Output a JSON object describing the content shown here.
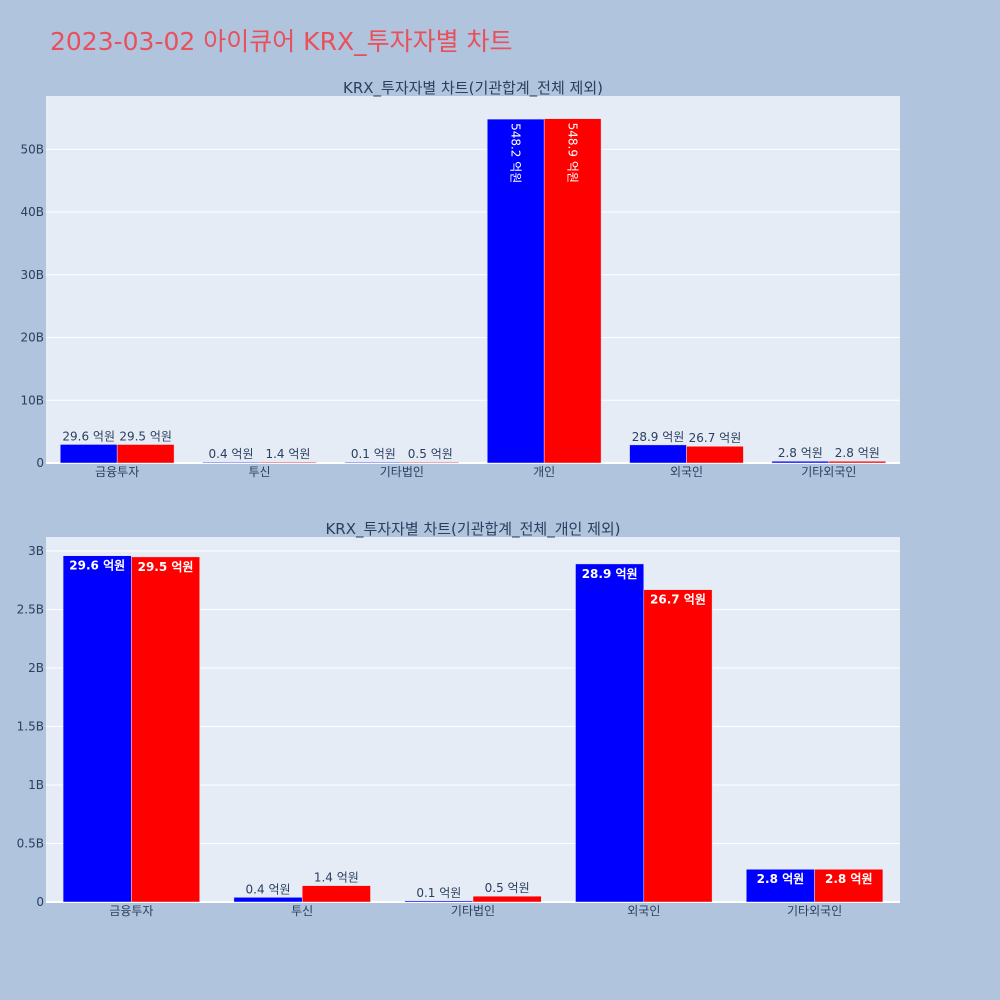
{
  "title": "2023-03-02 아이큐어 KRX_투자자별 차트",
  "colors": {
    "series_a": "#0000ff",
    "series_b": "#ff0000"
  },
  "chart_data": [
    {
      "type": "bar",
      "title": "KRX_투자자별 차트(기관합계_전체 제외)",
      "categories": [
        "금융투자",
        "투신",
        "기타법인",
        "개인",
        "외국인",
        "기타외국인"
      ],
      "series": [
        {
          "values": [
            2960000000,
            40000000,
            10000000,
            54820000000,
            2890000000,
            280000000
          ],
          "labels": [
            "29.6 억원",
            "0.4 억원",
            "0.1 억원",
            "548.2 억원",
            "28.9 억원",
            "2.8 억원"
          ]
        },
        {
          "values": [
            2950000000,
            140000000,
            50000000,
            54890000000,
            2670000000,
            280000000
          ],
          "labels": [
            "29.5 억원",
            "1.4 억원",
            "0.5 억원",
            "548.9 억원",
            "26.7 억원",
            "2.8 억원"
          ]
        }
      ],
      "ylim": [
        0,
        58500000000
      ],
      "yticks": [
        0,
        10000000000,
        20000000000,
        30000000000,
        40000000000,
        50000000000
      ],
      "ytick_labels": [
        "0",
        "10B",
        "20B",
        "30B",
        "40B",
        "50B"
      ]
    },
    {
      "type": "bar",
      "title": "KRX_투자자별 차트(기관합계_전체_개인 제외)",
      "categories": [
        "금융투자",
        "투신",
        "기타법인",
        "외국인",
        "기타외국인"
      ],
      "series": [
        {
          "values": [
            2960000000,
            40000000,
            10000000,
            2890000000,
            280000000
          ],
          "labels": [
            "29.6 억원",
            "0.4 억원",
            "0.1 억원",
            "28.9 억원",
            "2.8 억원"
          ]
        },
        {
          "values": [
            2950000000,
            140000000,
            50000000,
            2670000000,
            280000000
          ],
          "labels": [
            "29.5 억원",
            "1.4 억원",
            "0.5 억원",
            "26.7 억원",
            "2.8 억원"
          ]
        }
      ],
      "ylim": [
        0,
        3120000000
      ],
      "yticks": [
        0,
        500000000,
        1000000000,
        1500000000,
        2000000000,
        2500000000,
        3000000000
      ],
      "ytick_labels": [
        "0",
        "0.5B",
        "1B",
        "1.5B",
        "2B",
        "2.5B",
        "3B"
      ]
    }
  ]
}
